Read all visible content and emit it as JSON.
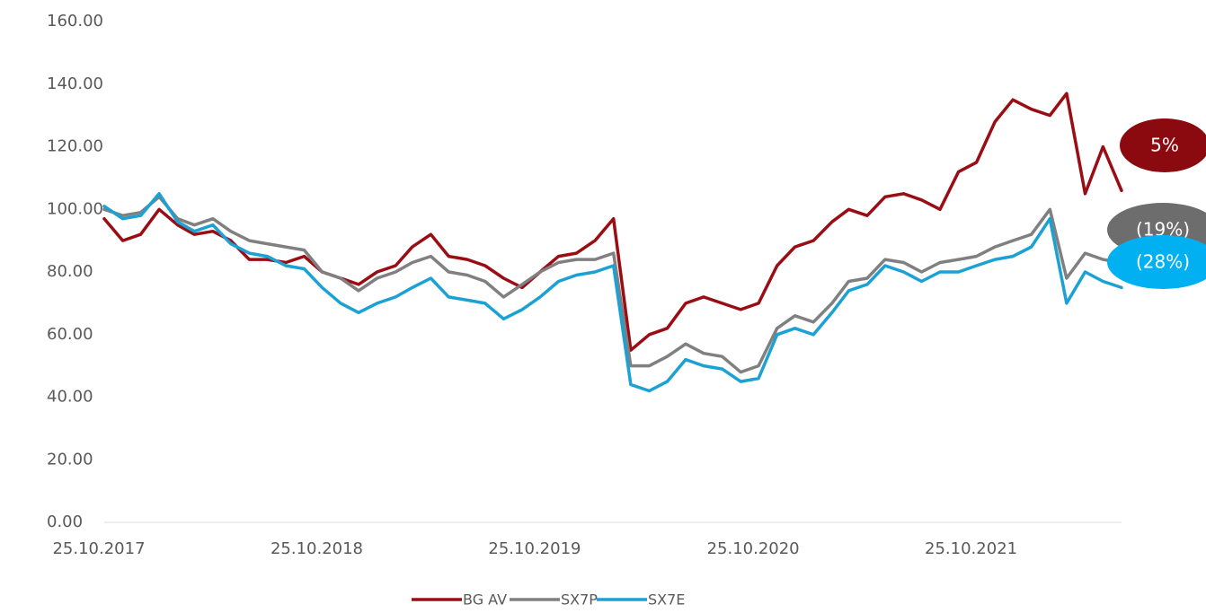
{
  "chart_data": {
    "type": "line",
    "x": [
      "25.10.2017",
      "25.11.2017",
      "25.12.2017",
      "25.01.2018",
      "25.02.2018",
      "25.03.2018",
      "25.04.2018",
      "25.05.2018",
      "25.06.2018",
      "25.07.2018",
      "25.08.2018",
      "25.09.2018",
      "25.10.2018",
      "25.11.2018",
      "25.12.2018",
      "25.01.2019",
      "25.02.2019",
      "25.03.2019",
      "25.04.2019",
      "25.05.2019",
      "25.06.2019",
      "25.07.2019",
      "25.08.2019",
      "25.09.2019",
      "25.10.2019",
      "25.11.2019",
      "25.12.2019",
      "25.01.2020",
      "25.02.2020",
      "25.03.2020",
      "25.04.2020",
      "25.05.2020",
      "25.06.2020",
      "25.07.2020",
      "25.08.2020",
      "25.09.2020",
      "25.10.2020",
      "25.11.2020",
      "25.12.2020",
      "25.01.2021",
      "25.02.2021",
      "25.03.2021",
      "25.04.2021",
      "25.05.2021",
      "25.06.2021",
      "25.07.2021",
      "25.08.2021",
      "25.09.2021",
      "25.10.2021",
      "25.11.2021",
      "25.12.2021",
      "25.01.2022",
      "25.02.2022",
      "25.03.2022",
      "25.04.2022",
      "25.05.2022",
      "25.06.2022"
    ],
    "series": [
      {
        "name": "BG AV",
        "color": "#9b0d14",
        "values": [
          97,
          90,
          92,
          100,
          95,
          92,
          93,
          90,
          84,
          84,
          83,
          85,
          80,
          78,
          76,
          80,
          82,
          88,
          92,
          85,
          84,
          82,
          78,
          75,
          80,
          85,
          86,
          90,
          97,
          55,
          60,
          62,
          70,
          72,
          70,
          68,
          70,
          82,
          88,
          90,
          96,
          100,
          98,
          104,
          105,
          103,
          100,
          112,
          115,
          128,
          135,
          132,
          130,
          137,
          105,
          120,
          106
        ]
      },
      {
        "name": "SX7P",
        "color": "#808080",
        "values": [
          100,
          98,
          99,
          104,
          97,
          95,
          97,
          93,
          90,
          89,
          88,
          87,
          80,
          78,
          74,
          78,
          80,
          83,
          85,
          80,
          79,
          77,
          72,
          76,
          80,
          83,
          84,
          84,
          86,
          50,
          50,
          53,
          57,
          54,
          53,
          48,
          50,
          62,
          66,
          64,
          70,
          77,
          78,
          84,
          83,
          80,
          83,
          84,
          85,
          88,
          90,
          92,
          100,
          78,
          86,
          84,
          83
        ]
      },
      {
        "name": "SX7E",
        "color": "#1ba1d4",
        "values": [
          101,
          97,
          98,
          105,
          96,
          93,
          95,
          89,
          86,
          85,
          82,
          81,
          75,
          70,
          67,
          70,
          72,
          75,
          78,
          72,
          71,
          70,
          65,
          68,
          72,
          77,
          79,
          80,
          82,
          44,
          42,
          45,
          52,
          50,
          49,
          45,
          46,
          60,
          62,
          60,
          67,
          74,
          76,
          82,
          80,
          77,
          80,
          80,
          82,
          84,
          85,
          88,
          97,
          70,
          80,
          77,
          75
        ]
      }
    ],
    "xlim": [
      "25.10.2017",
      "25.06.2022"
    ],
    "xticks": [
      "25.10.2017",
      "25.10.2018",
      "25.10.2019",
      "25.10.2020",
      "25.10.2021"
    ],
    "ylim": [
      0,
      160
    ],
    "yticks": [
      {
        "value": 0,
        "label": "0.00"
      },
      {
        "value": 20,
        "label": "20.00"
      },
      {
        "value": 40,
        "label": "40.00"
      },
      {
        "value": 60,
        "label": "60.00"
      },
      {
        "value": 80,
        "label": "80.00"
      },
      {
        "value": 100,
        "label": "100.00"
      },
      {
        "value": 120,
        "label": "120.00"
      },
      {
        "value": 140,
        "label": "140.00"
      },
      {
        "value": 160,
        "label": "160.00"
      }
    ],
    "grid": false,
    "legend": "bottom",
    "annotations": [
      {
        "text": "5%",
        "color": "#8b0a10"
      },
      {
        "text": "(19%)",
        "color": "#6d6d6d"
      },
      {
        "text": "(28%)",
        "color": "#00b0f0"
      }
    ]
  }
}
